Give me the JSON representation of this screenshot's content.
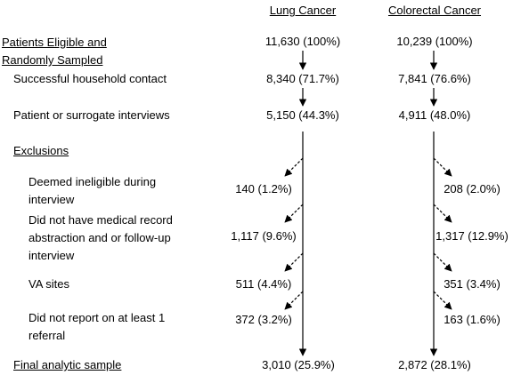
{
  "columns": [
    "Lung Cancer",
    "Colorectal Cancer"
  ],
  "stages": [
    {
      "label": "Patients Eligible and Randomly Sampled",
      "values": [
        "11,630 (100%)",
        "10,239 (100%)"
      ]
    },
    {
      "label": "Successful household contact",
      "values": [
        "8,340 (71.7%)",
        "7,841 (76.6%)"
      ]
    },
    {
      "label": "Patient or surrogate interviews",
      "values": [
        "5,150 (44.3%)",
        "4,911 (48.0%)"
      ]
    }
  ],
  "exclusions": {
    "heading": "Exclusions",
    "rows": [
      {
        "label": "Deemed ineligible during interview",
        "values": [
          "140 (1.2%)",
          "208 (2.0%)"
        ]
      },
      {
        "label": "Did not have medical record abstraction and or follow-up interview",
        "values": [
          "1,117 (9.6%)",
          "1,317 (12.9%)"
        ]
      },
      {
        "label": "VA sites",
        "values": [
          "511 (4.4%)",
          "351 (3.4%)"
        ]
      },
      {
        "label": "Did not report on at least 1 referral",
        "values": [
          "372 (3.2%)",
          "163 (1.6%)"
        ]
      }
    ]
  },
  "final": {
    "label": "Final analytic sample",
    "values": [
      "3,010 (25.9%)",
      "2,872 (28.1%)"
    ]
  }
}
